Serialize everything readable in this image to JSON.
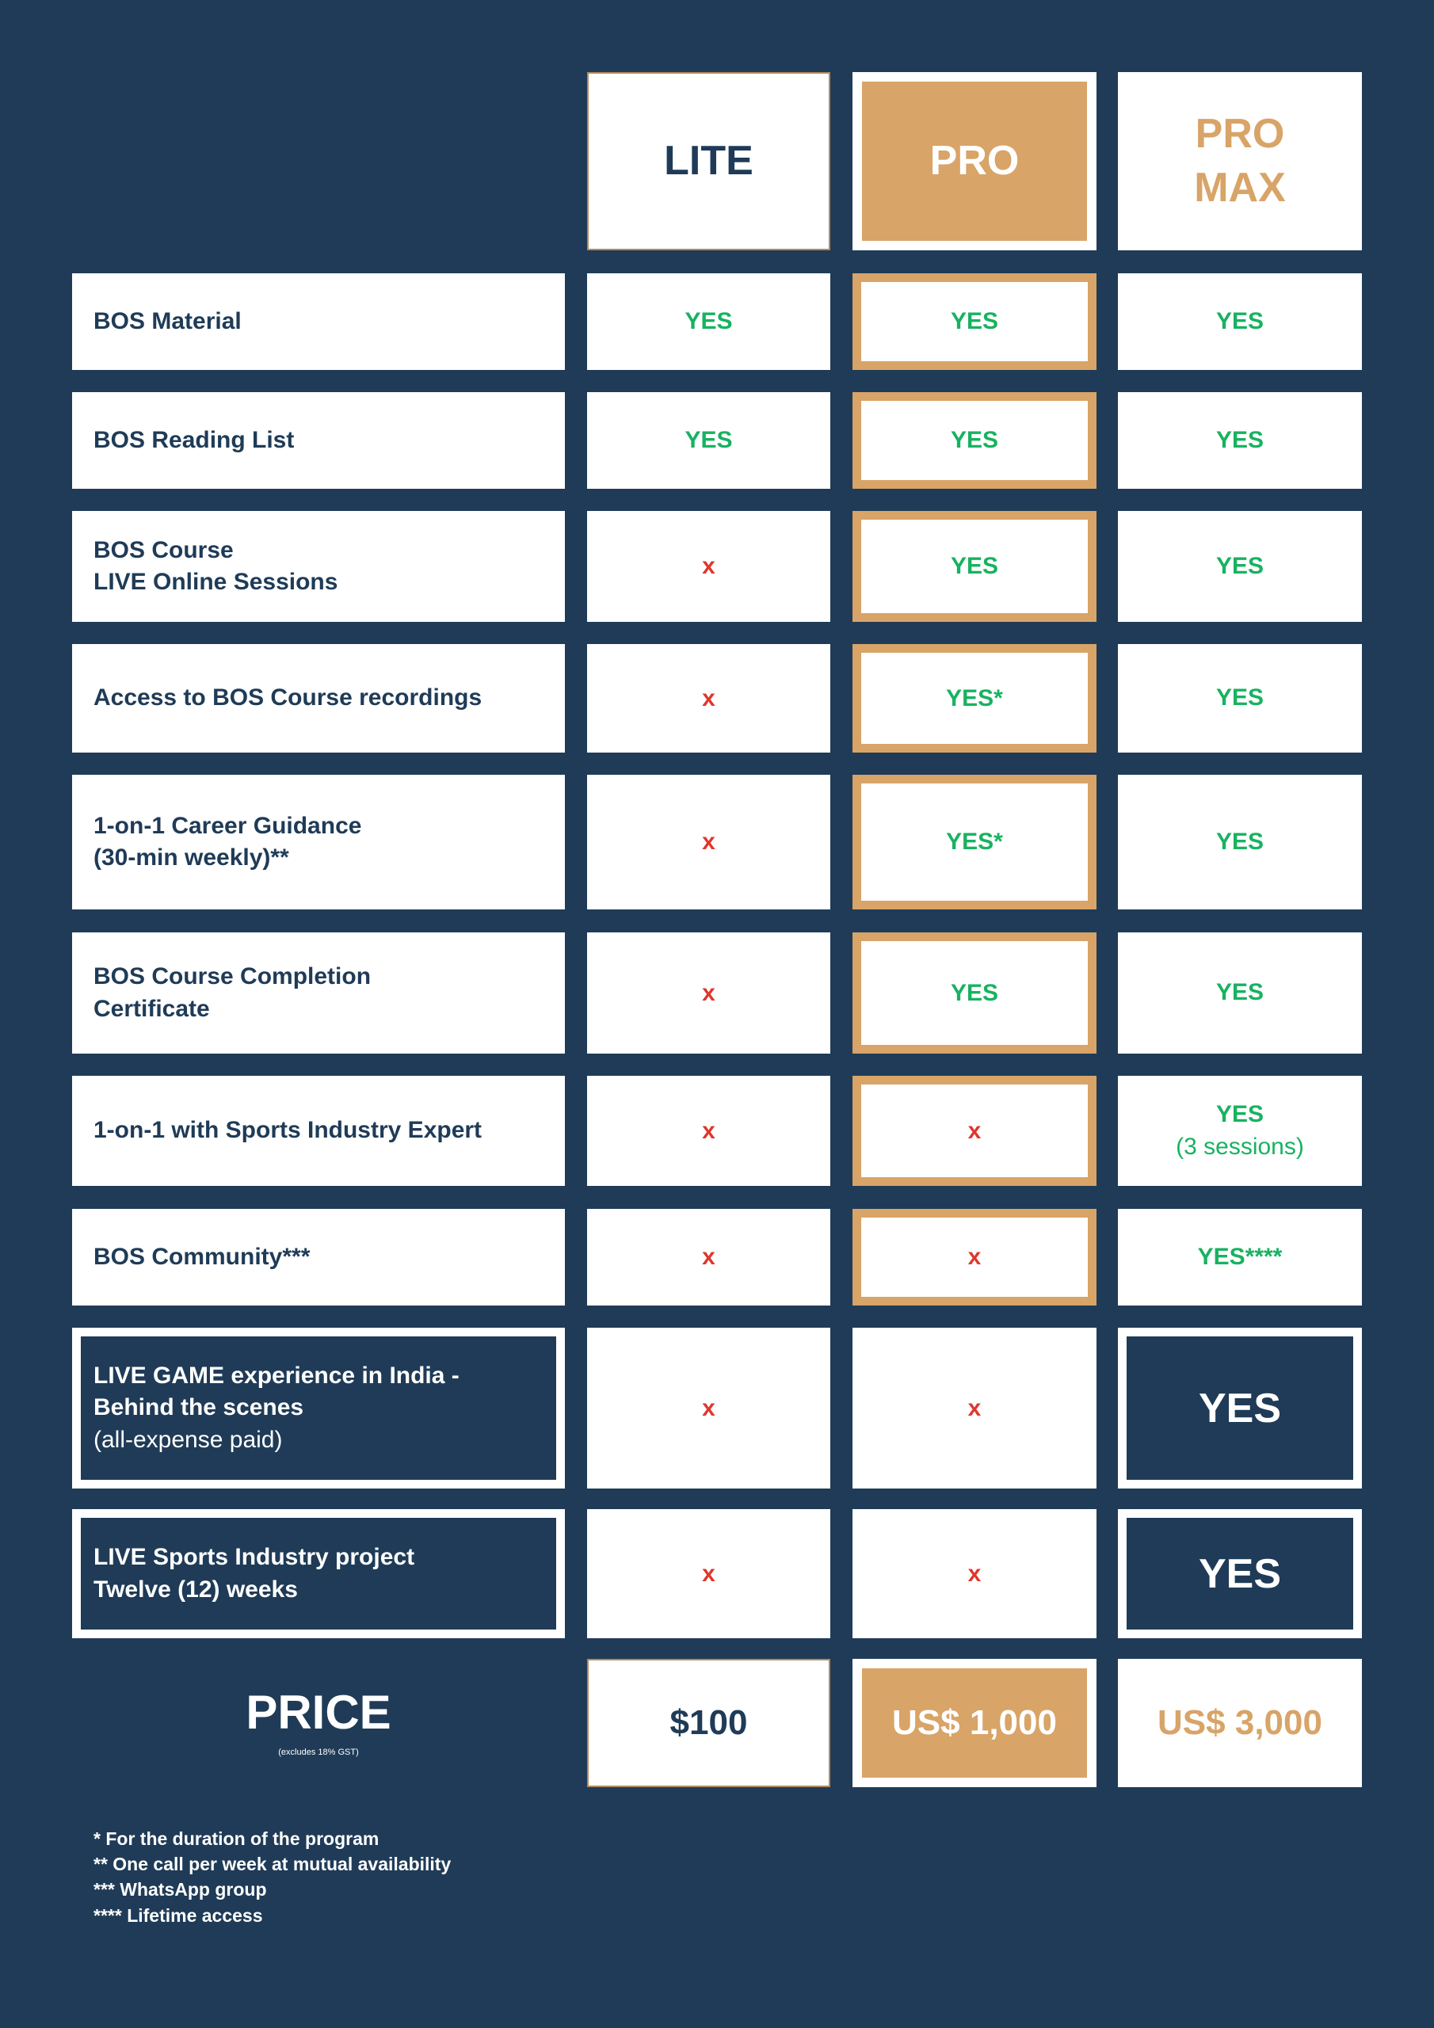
{
  "colors": {
    "background": "#1f3b57",
    "accent": "#d8a467",
    "yes_green": "#18b261",
    "no_red": "#e0362c"
  },
  "plans": {
    "lite": "LITE",
    "pro": "PRO",
    "pro_max": "PRO\nMAX"
  },
  "rows": [
    {
      "feature": "BOS Material",
      "lite": "YES",
      "pro": "YES",
      "pro_max": "YES"
    },
    {
      "feature": "BOS Reading List",
      "lite": "YES",
      "pro": "YES",
      "pro_max": "YES"
    },
    {
      "feature": "BOS Course\nLIVE Online Sessions",
      "lite": "x",
      "pro": "YES",
      "pro_max": "YES"
    },
    {
      "feature": "Access to BOS Course recordings",
      "lite": "x",
      "pro": "YES*",
      "pro_max": "YES"
    },
    {
      "feature": "1-on-1 Career Guidance\n(30-min weekly)**",
      "lite": "x",
      "pro": "YES*",
      "pro_max": "YES"
    },
    {
      "feature": "BOS Course Completion\nCertificate",
      "lite": "x",
      "pro": "YES",
      "pro_max": "YES"
    },
    {
      "feature": "1-on-1 with Sports Industry Expert",
      "lite": "x",
      "pro": "x",
      "pro_max": "YES",
      "pro_max_note": "(3 sessions)"
    },
    {
      "feature": "BOS Community***",
      "lite": "x",
      "pro": "x",
      "pro_max": "YES****"
    }
  ],
  "highlight_rows": [
    {
      "feature": "LIVE GAME experience in India -\nBehind the scenes",
      "feature_note": "(all-expense paid)",
      "lite": "x",
      "pro": "x",
      "pro_max": "YES"
    },
    {
      "feature": "LIVE Sports Industry project\nTwelve (12) weeks",
      "feature_note": "",
      "lite": "x",
      "pro": "x",
      "pro_max": "YES"
    }
  ],
  "price": {
    "label": "PRICE",
    "note": "(excludes 18% GST)",
    "lite": "$100",
    "pro": "US$ 1,000",
    "pro_max": "US$ 3,000"
  },
  "footnotes": [
    "* For the duration of the program",
    "** One call per week at mutual availability",
    "*** WhatsApp group",
    "**** Lifetime access"
  ]
}
